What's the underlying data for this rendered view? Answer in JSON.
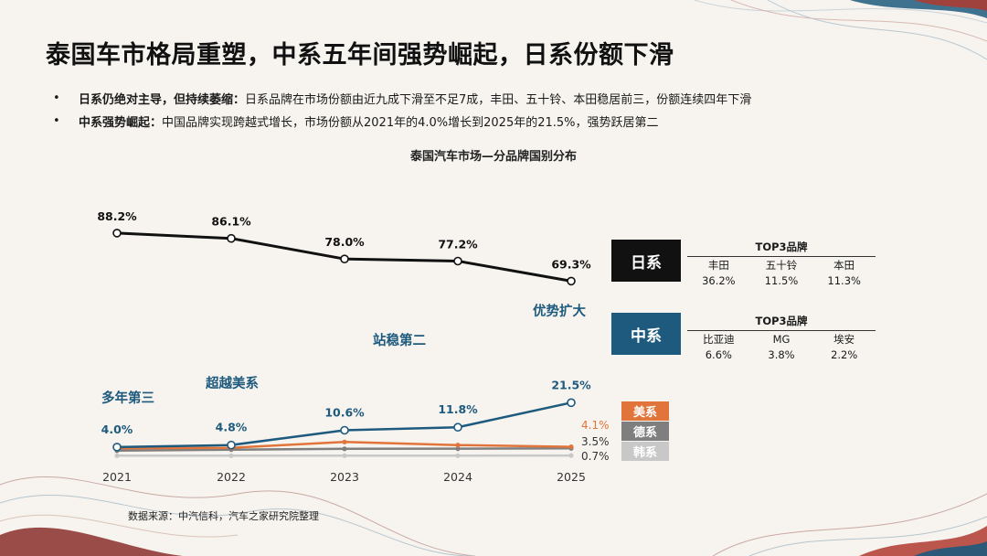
{
  "title": "泰国车市格局重塑，中系五年间强势崛起，日系份额下滑",
  "bullets": [
    {
      "marker": "•",
      "lead": "日系仍绝对主导，但持续萎缩：",
      "text": "日系品牌在市场份额由近九成下滑至不足7成，丰田、五十铃、本田稳居前三，份额连续四年下滑"
    },
    {
      "marker": "•",
      "lead": "中系强势崛起：",
      "text": "中国品牌实现跨越式增长，市场份额从2021年的4.0%增长到2025年的21.5%，强势跃居第二"
    }
  ],
  "colors": {
    "japan": "#111111",
    "china": "#1e5a7e",
    "usa": "#e0743a",
    "germany": "#7f7f7f",
    "korea": "#c8c8c8"
  },
  "chart_data": {
    "type": "line",
    "title": "泰国汽车市场—分品牌国别分布",
    "x": [
      "2021",
      "2022",
      "2023",
      "2024",
      "2025"
    ],
    "ylim": [
      0,
      95
    ],
    "series": [
      {
        "name": "日系",
        "key": "japan",
        "values": [
          88.2,
          86.1,
          78.0,
          77.2,
          69.3
        ],
        "labels": [
          "88.2%",
          "86.1%",
          "78.0%",
          "77.2%",
          "69.3%"
        ]
      },
      {
        "name": "中系",
        "key": "china",
        "values": [
          4.0,
          4.8,
          10.6,
          11.8,
          21.5
        ],
        "labels": [
          "4.0%",
          "4.8%",
          "10.6%",
          "11.8%",
          "21.5%"
        ]
      },
      {
        "name": "美系",
        "key": "usa",
        "values": [
          3.5,
          3.7,
          6.0,
          4.8,
          4.1
        ],
        "labels": [
          "",
          "",
          "",
          "",
          "4.1%"
        ]
      },
      {
        "name": "德系",
        "key": "germany",
        "values": [
          2.6,
          3.0,
          3.3,
          3.4,
          3.5
        ],
        "labels": [
          "",
          "",
          "",
          "",
          "3.5%"
        ]
      },
      {
        "name": "韩系",
        "key": "korea",
        "values": [
          0.6,
          0.6,
          0.6,
          0.6,
          0.7
        ],
        "labels": [
          "",
          "",
          "",
          "",
          "0.7%"
        ]
      }
    ],
    "annotations": [
      "多年第三",
      "超越美系",
      "站稳第二",
      "优势扩大"
    ],
    "legend": {
      "japan_label": "日系",
      "china_label": "中系",
      "usa_label": "美系",
      "germany_label": "德系",
      "korea_label": "韩系"
    },
    "top3": {
      "japan": {
        "header": "TOP3品牌",
        "brands": [
          "丰田",
          "五十铃",
          "本田"
        ],
        "shares": [
          "36.2%",
          "11.5%",
          "11.3%"
        ]
      },
      "china": {
        "header": "TOP3品牌",
        "brands": [
          "比亚迪",
          "MG",
          "埃安"
        ],
        "shares": [
          "6.6%",
          "3.8%",
          "2.2%"
        ]
      }
    }
  },
  "source": "数据来源：中汽信科，汽车之家研究院整理"
}
